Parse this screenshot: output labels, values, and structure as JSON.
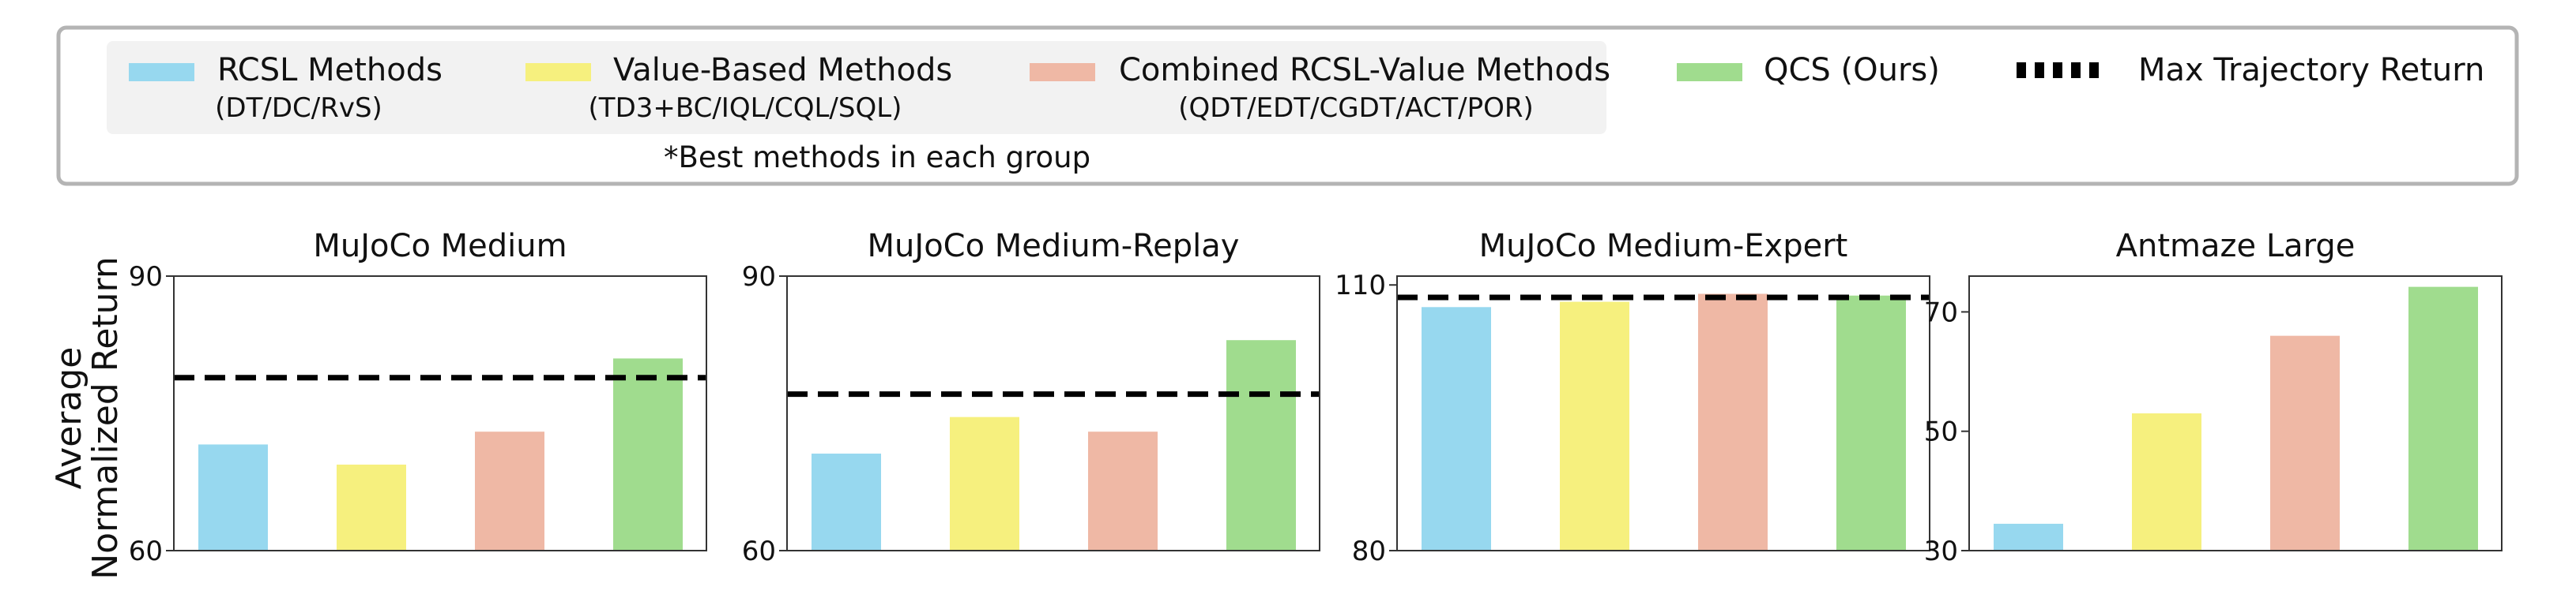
{
  "legend": {
    "items": [
      {
        "key": "rcsl",
        "label": "RCSL Methods",
        "sublabel": "(DT/DC/RvS)",
        "color": "#97d8ef"
      },
      {
        "key": "value",
        "label": "Value-Based Methods",
        "sublabel": "(TD3+BC/IQL/CQL/SQL)",
        "color": "#f6f07e"
      },
      {
        "key": "combined",
        "label": "Combined RCSL-Value Methods",
        "sublabel": "(QDT/EDT/CGDT/ACT/POR)",
        "color": "#efb8a5"
      },
      {
        "key": "qcs",
        "label": "QCS (Ours)",
        "sublabel": "",
        "color": "#a0dc8e"
      }
    ],
    "max_line_label": "Max Trajectory Return",
    "note": "*Best methods in each group"
  },
  "shared_ylabel": [
    "Average",
    "Normalized Return"
  ],
  "chart_data": [
    {
      "type": "bar",
      "title": "MuJoCo Medium",
      "categories": [
        "RCSL Methods",
        "Value-Based Methods",
        "Combined RCSL-Value Methods",
        "QCS (Ours)"
      ],
      "values": [
        71.6,
        69.4,
        73.0,
        81.0
      ],
      "max_trajectory_return": 78.9,
      "ylim": [
        60,
        90
      ],
      "yticks": [
        "60",
        "90"
      ]
    },
    {
      "type": "bar",
      "title": "MuJoCo Medium-Replay",
      "categories": [
        "RCSL Methods",
        "Value-Based Methods",
        "Combined RCSL-Value Methods",
        "QCS (Ours)"
      ],
      "values": [
        70.6,
        74.6,
        73.0,
        83.0
      ],
      "max_trajectory_return": 77.1,
      "ylim": [
        60,
        90
      ],
      "yticks": [
        "60",
        "90"
      ]
    },
    {
      "type": "bar",
      "title": "MuJoCo Medium-Expert",
      "categories": [
        "RCSL Methods",
        "Value-Based Methods",
        "Combined RCSL-Value Methods",
        "QCS (Ours)"
      ],
      "values": [
        107.5,
        108.1,
        109.0,
        108.8
      ],
      "max_trajectory_return": 108.6,
      "ylim": [
        80,
        111
      ],
      "yticks": [
        "80",
        "110"
      ]
    },
    {
      "type": "bar",
      "title": "Antmaze Large",
      "categories": [
        "RCSL Methods",
        "Value-Based Methods",
        "Combined RCSL-Value Methods",
        "QCS (Ours)"
      ],
      "values": [
        34.5,
        53.0,
        66.0,
        74.2
      ],
      "ylim": [
        30,
        76
      ],
      "yticks": [
        "30",
        "50",
        "70"
      ]
    }
  ]
}
